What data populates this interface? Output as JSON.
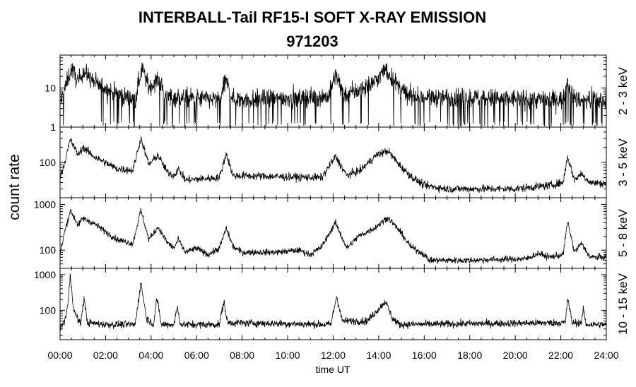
{
  "title_line1": "INTERBALL-Tail RF15-I SOFT X-RAY EMISSION",
  "title_line2": "971203",
  "chart_data": {
    "type": "line",
    "ylabel": "count rate",
    "xlabel": "time UT",
    "x_ticks": [
      "00:00",
      "02:00",
      "04:00",
      "06:00",
      "08:00",
      "10:00",
      "12:00",
      "14:00",
      "16:00",
      "18:00",
      "20:00",
      "22:00",
      "24:00"
    ],
    "x_range_hours": [
      0,
      24
    ],
    "y_scale": "log",
    "grid": false,
    "panels": [
      {
        "name": "2 - 3 keV",
        "ylim": [
          1,
          70
        ],
        "y_ticks": [
          {
            "value": 1,
            "label": "1"
          },
          {
            "value": 10,
            "label": "10"
          }
        ],
        "baseline": [
          [
            0,
            4
          ],
          [
            0.2,
            9
          ],
          [
            0.5,
            32
          ],
          [
            0.8,
            14
          ],
          [
            1.0,
            28
          ],
          [
            1.5,
            14
          ],
          [
            2.5,
            7
          ],
          [
            3.3,
            5
          ],
          [
            3.6,
            35
          ],
          [
            3.9,
            10
          ],
          [
            4.3,
            17
          ],
          [
            4.7,
            6
          ],
          [
            7.0,
            5
          ],
          [
            7.3,
            16
          ],
          [
            7.6,
            5
          ],
          [
            11.8,
            6
          ],
          [
            12.1,
            22
          ],
          [
            12.5,
            7
          ],
          [
            13.0,
            8
          ],
          [
            13.8,
            14
          ],
          [
            14.3,
            30
          ],
          [
            14.8,
            12
          ],
          [
            15.3,
            6
          ],
          [
            22.1,
            5
          ],
          [
            22.3,
            15
          ],
          [
            22.6,
            5
          ],
          [
            24,
            5
          ]
        ],
        "noise": 0.28,
        "dropouts": true
      },
      {
        "name": "3 - 5 keV",
        "ylim": [
          20,
          500
        ],
        "y_ticks": [
          {
            "value": 100,
            "label": "100"
          }
        ],
        "baseline": [
          [
            0,
            50
          ],
          [
            0.2,
            100
          ],
          [
            0.45,
            280
          ],
          [
            0.8,
            140
          ],
          [
            1.0,
            200
          ],
          [
            1.5,
            130
          ],
          [
            2.5,
            75
          ],
          [
            3.2,
            70
          ],
          [
            3.55,
            300
          ],
          [
            3.9,
            90
          ],
          [
            4.3,
            140
          ],
          [
            4.7,
            65
          ],
          [
            5.0,
            55
          ],
          [
            5.2,
            75
          ],
          [
            5.5,
            45
          ],
          [
            7.0,
            50
          ],
          [
            7.3,
            150
          ],
          [
            7.6,
            55
          ],
          [
            11.5,
            50
          ],
          [
            12.1,
            130
          ],
          [
            12.6,
            55
          ],
          [
            13.2,
            70
          ],
          [
            13.9,
            140
          ],
          [
            14.4,
            170
          ],
          [
            15.0,
            80
          ],
          [
            15.5,
            50
          ],
          [
            16.0,
            35
          ],
          [
            17,
            30
          ],
          [
            20,
            30
          ],
          [
            21.5,
            35
          ],
          [
            22.1,
            40
          ],
          [
            22.3,
            130
          ],
          [
            22.6,
            45
          ],
          [
            22.9,
            60
          ],
          [
            23.3,
            40
          ],
          [
            24,
            38
          ]
        ],
        "noise": 0.09,
        "dropouts": false
      },
      {
        "name": "5 - 8 keV",
        "ylim": [
          40,
          1400
        ],
        "y_ticks": [
          {
            "value": 100,
            "label": "100"
          },
          {
            "value": 1000,
            "label": "1000"
          }
        ],
        "baseline": [
          [
            0,
            80
          ],
          [
            0.2,
            250
          ],
          [
            0.45,
            750
          ],
          [
            0.8,
            350
          ],
          [
            1.0,
            500
          ],
          [
            1.5,
            380
          ],
          [
            2.5,
            170
          ],
          [
            3.2,
            140
          ],
          [
            3.55,
            750
          ],
          [
            3.9,
            170
          ],
          [
            4.3,
            320
          ],
          [
            4.7,
            150
          ],
          [
            5.0,
            110
          ],
          [
            5.2,
            170
          ],
          [
            5.5,
            90
          ],
          [
            6.0,
            110
          ],
          [
            6.5,
            80
          ],
          [
            7.0,
            110
          ],
          [
            7.3,
            300
          ],
          [
            7.6,
            120
          ],
          [
            8.0,
            90
          ],
          [
            9.5,
            90
          ],
          [
            10.5,
            100
          ],
          [
            11.0,
            80
          ],
          [
            11.5,
            120
          ],
          [
            12.1,
            400
          ],
          [
            12.6,
            110
          ],
          [
            13.1,
            200
          ],
          [
            13.8,
            300
          ],
          [
            14.4,
            520
          ],
          [
            14.9,
            270
          ],
          [
            15.4,
            120
          ],
          [
            16.0,
            80
          ],
          [
            16.2,
            60
          ],
          [
            18,
            60
          ],
          [
            20.5,
            65
          ],
          [
            21.0,
            85
          ],
          [
            21.5,
            70
          ],
          [
            22.1,
            80
          ],
          [
            22.3,
            420
          ],
          [
            22.6,
            90
          ],
          [
            22.9,
            140
          ],
          [
            23.3,
            70
          ],
          [
            24,
            70
          ]
        ],
        "noise": 0.08,
        "dropouts": false
      },
      {
        "name": "10 - 15 keV",
        "ylim": [
          15,
          1500
        ],
        "y_ticks": [
          {
            "value": 100,
            "label": "100"
          },
          {
            "value": 1000,
            "label": "1000"
          }
        ],
        "baseline": [
          [
            0,
            30
          ],
          [
            0.2,
            50
          ],
          [
            0.35,
            150
          ],
          [
            0.45,
            1000
          ],
          [
            0.6,
            100
          ],
          [
            0.9,
            40
          ],
          [
            1.05,
            220
          ],
          [
            1.2,
            45
          ],
          [
            2,
            40
          ],
          [
            3.3,
            40
          ],
          [
            3.55,
            600
          ],
          [
            3.8,
            60
          ],
          [
            4.1,
            40
          ],
          [
            4.25,
            220
          ],
          [
            4.45,
            40
          ],
          [
            5.0,
            40
          ],
          [
            5.15,
            120
          ],
          [
            5.3,
            40
          ],
          [
            7.0,
            40
          ],
          [
            7.2,
            180
          ],
          [
            7.35,
            45
          ],
          [
            11.9,
            40
          ],
          [
            12.15,
            250
          ],
          [
            12.4,
            50
          ],
          [
            13.5,
            50
          ],
          [
            14.0,
            110
          ],
          [
            14.3,
            180
          ],
          [
            14.6,
            60
          ],
          [
            14.9,
            40
          ],
          [
            22.2,
            45
          ],
          [
            22.3,
            220
          ],
          [
            22.5,
            45
          ],
          [
            22.9,
            45
          ],
          [
            23.0,
            110
          ],
          [
            23.1,
            40
          ],
          [
            24,
            40
          ]
        ],
        "noise": 0.12,
        "dropouts": false
      }
    ]
  }
}
